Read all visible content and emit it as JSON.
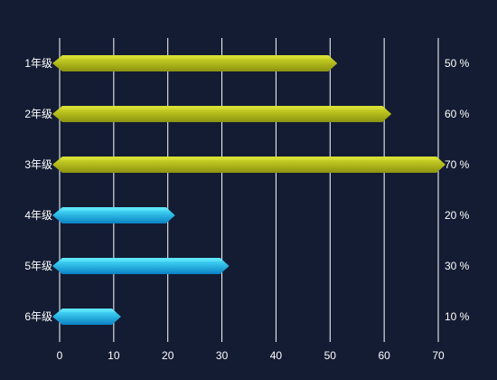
{
  "chart_data": {
    "type": "bar",
    "orientation": "horizontal",
    "categories": [
      "1年级",
      "2年级",
      "3年级",
      "4年级",
      "5年级",
      "6年级"
    ],
    "values": [
      50,
      60,
      70,
      20,
      30,
      10
    ],
    "value_labels": [
      "50 %",
      "60 %",
      "70 %",
      "20 %",
      "30 %",
      "10 %"
    ],
    "x_ticks": [
      "0",
      "10",
      "20",
      "30",
      "40",
      "50",
      "60",
      "70"
    ],
    "xlim": [
      0,
      70
    ],
    "grid": true,
    "colors": {
      "background": "#131c33",
      "grid": "#ffffff",
      "yellow_top": "#d6df2a",
      "yellow_bottom": "#8c930f",
      "cyan_top": "#4fe8ff",
      "cyan_bottom": "#0a82c4",
      "text": "#ffffff"
    },
    "bar_color_groups": [
      "yellow",
      "yellow",
      "yellow",
      "cyan",
      "cyan",
      "cyan"
    ]
  }
}
